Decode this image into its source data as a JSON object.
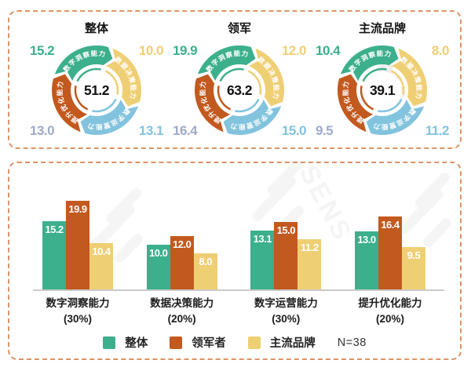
{
  "colors": {
    "green": "#3CAF8C",
    "orange": "#C2591E",
    "yellow": "#EFCF74",
    "blue": "#82C3DE",
    "gray_blue": "#9FAACB",
    "panel_border": "#DC9368",
    "axis_line": "#CBCBCB",
    "bar_label": "#FFFFFF",
    "text_dark": "#111111"
  },
  "watermark": {
    "top_panel": "data",
    "bottom_panel": "SENS"
  },
  "capability_labels": [
    "数字洞察能力",
    "数据决策能力",
    "数字运营能力",
    "提升优化能力"
  ],
  "chart_data": [
    {
      "type": "pie",
      "variant": "arrow-donut",
      "title": "整体",
      "center_total": "51.2",
      "segments": [
        {
          "label": "数字洞察能力",
          "value": "15.2",
          "color_key": "green",
          "value_color_key": "green"
        },
        {
          "label": "数据决策能力",
          "value": "10.0",
          "color_key": "yellow",
          "value_color_key": "yellow"
        },
        {
          "label": "数字运营能力",
          "value": "13.1",
          "color_key": "blue",
          "value_color_key": "blue"
        },
        {
          "label": "提升优化能力",
          "value": "13.0",
          "color_key": "orange",
          "value_color_key": "gray_blue"
        }
      ]
    },
    {
      "type": "pie",
      "variant": "arrow-donut",
      "title": "领军",
      "center_total": "63.2",
      "segments": [
        {
          "label": "数字洞察能力",
          "value": "19.9",
          "color_key": "green",
          "value_color_key": "green"
        },
        {
          "label": "数据决策能力",
          "value": "12.0",
          "color_key": "yellow",
          "value_color_key": "yellow"
        },
        {
          "label": "数字运营能力",
          "value": "15.0",
          "color_key": "blue",
          "value_color_key": "blue"
        },
        {
          "label": "提升优化能力",
          "value": "16.4",
          "color_key": "orange",
          "value_color_key": "gray_blue"
        }
      ]
    },
    {
      "type": "pie",
      "variant": "arrow-donut",
      "title": "主流品牌",
      "center_total": "39.1",
      "segments": [
        {
          "label": "数字洞察能力",
          "value": "10.4",
          "color_key": "green",
          "value_color_key": "green"
        },
        {
          "label": "数据决策能力",
          "value": "8.0",
          "color_key": "yellow",
          "value_color_key": "yellow"
        },
        {
          "label": "数字运营能力",
          "value": "11.2",
          "color_key": "blue",
          "value_color_key": "blue"
        },
        {
          "label": "提升优化能力",
          "value": "9.5",
          "color_key": "orange",
          "value_color_key": "gray_blue"
        }
      ]
    },
    {
      "type": "bar",
      "categories": [
        {
          "name": "数字洞察能力",
          "weight": "(30%)"
        },
        {
          "name": "数据决策能力",
          "weight": "(20%)"
        },
        {
          "name": "数字运营能力",
          "weight": "(30%)"
        },
        {
          "name": "提升优化能力",
          "weight": "(20%)"
        }
      ],
      "series": [
        {
          "name": "整体",
          "color_key": "green",
          "values": [
            15.2,
            10.0,
            13.1,
            13.0
          ]
        },
        {
          "name": "领军者",
          "color_key": "orange",
          "values": [
            19.9,
            12.0,
            15.0,
            16.4
          ]
        },
        {
          "name": "主流品牌",
          "color_key": "yellow",
          "values": [
            10.4,
            8.0,
            11.2,
            9.5
          ]
        }
      ],
      "sample_note": "N=38",
      "ylim": [
        0,
        22
      ],
      "grid": false,
      "legend_position": "bottom"
    }
  ]
}
